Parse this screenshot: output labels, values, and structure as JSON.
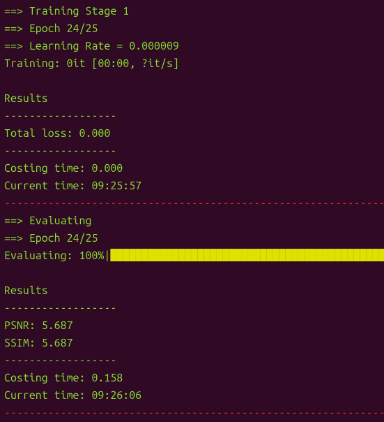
{
  "training": {
    "header": "==> Training Stage 1",
    "epoch_line": "==> Epoch 24/25",
    "lr_line": "==> Learning Rate = 0.000009",
    "progress": "Training: 0it [00:00, ?it/s]",
    "blank": "",
    "results_label": "Results",
    "sep": "------------------",
    "total_loss": "Total loss: 0.000",
    "costing_time": "Costing time: 0.000",
    "current_time": "Current time: 09:25:57",
    "divider": "----------------------------------------------------------------------"
  },
  "evaluating": {
    "header": "==> Evaluating",
    "epoch_line": "==> Epoch 24/25",
    "progress_prefix": "Evaluating: 100%|",
    "progress_bar": "██████████████████████████████████████████████████",
    "blank": "",
    "results_label": "Results",
    "sep": "------------------",
    "psnr": "PSNR: 5.687",
    "ssim": "SSIM: 5.687",
    "costing_time": "Costing time: 0.158",
    "current_time": "Current time: 09:26:06",
    "divider": "----------------------------------------------------------------------"
  },
  "colors": {
    "background": "#300a24",
    "green": "#8ae234",
    "red": "#ef2929",
    "yellow": "#dde200"
  }
}
